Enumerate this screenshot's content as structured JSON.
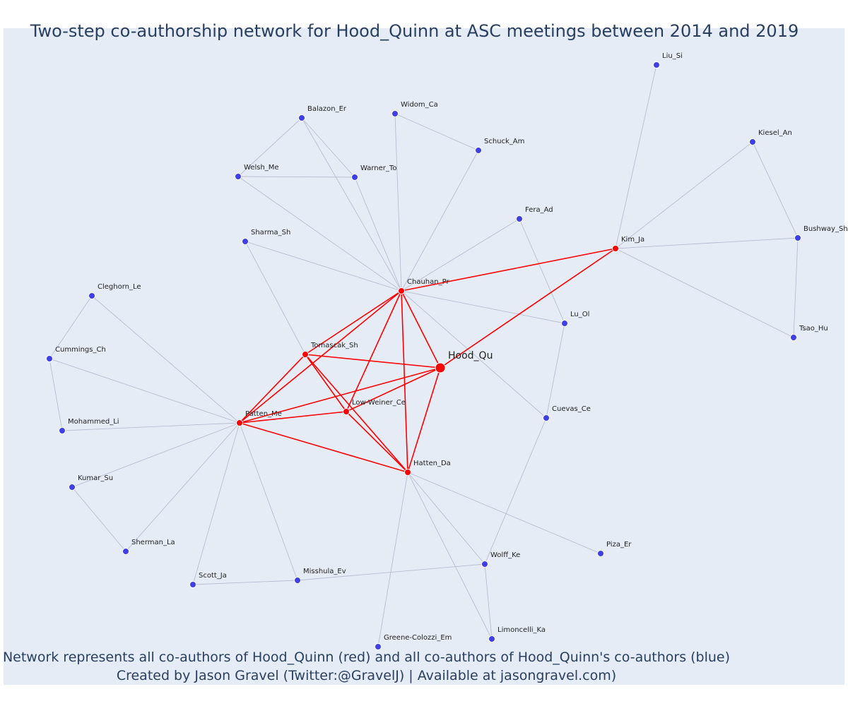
{
  "title": "Two-step co-authorship network for Hood_Quinn at ASC meetings between 2014 and 2019",
  "footer": {
    "line1": "Network represents all co-authors of Hood_Quinn (red) and all co-authors of Hood_Quinn's co-authors (blue)",
    "line2": "Created by Jason Gravel (Twitter:@GravelJ) | Available at jasongravel.com)"
  },
  "colors": {
    "coauthor": "#ff0000",
    "second_step": "#3f3fe8",
    "second_step_edge": "#b9bdd1",
    "coauthor_edge": "#ff0000",
    "background": "#e5ecf6"
  },
  "chart_data": {
    "type": "network",
    "center": "Hood_Qu",
    "nodes": [
      {
        "id": "Hood_Qu",
        "label": "Hood_Qu",
        "group": "center"
      },
      {
        "id": "Chauhan_Pr",
        "label": "Chauhan_Pr",
        "group": "coauthor"
      },
      {
        "id": "Kim_Ja",
        "label": "Kim_Ja",
        "group": "coauthor"
      },
      {
        "id": "Tomascak_Sh",
        "label": "Tomascak_Sh",
        "group": "coauthor"
      },
      {
        "id": "Low-Weiner_Ce",
        "label": "Low-Weiner_Ce",
        "group": "coauthor"
      },
      {
        "id": "Patten_Me",
        "label": "Patten_Me",
        "group": "coauthor"
      },
      {
        "id": "Hatten_Da",
        "label": "Hatten_Da",
        "group": "coauthor"
      },
      {
        "id": "Liu_Si",
        "label": "Liu_Si",
        "group": "second"
      },
      {
        "id": "Kiesel_An",
        "label": "Kiesel_An",
        "group": "second"
      },
      {
        "id": "Bushway_Sh",
        "label": "Bushway_Sh",
        "group": "second"
      },
      {
        "id": "Tsao_Hu",
        "label": "Tsao_Hu",
        "group": "second"
      },
      {
        "id": "Balazon_Er",
        "label": "Balazon_Er",
        "group": "second"
      },
      {
        "id": "Widom_Ca",
        "label": "Widom_Ca",
        "group": "second"
      },
      {
        "id": "Schuck_Am",
        "label": "Schuck_Am",
        "group": "second"
      },
      {
        "id": "Welsh_Me",
        "label": "Welsh_Me",
        "group": "second"
      },
      {
        "id": "Warner_To",
        "label": "Warner_To",
        "group": "second"
      },
      {
        "id": "Fera_Ad",
        "label": "Fera_Ad",
        "group": "second"
      },
      {
        "id": "Sharma_Sh",
        "label": "Sharma_Sh",
        "group": "second"
      },
      {
        "id": "Lu_Ol",
        "label": "Lu_Ol",
        "group": "second"
      },
      {
        "id": "Cuevas_Ce",
        "label": "Cuevas_Ce",
        "group": "second"
      },
      {
        "id": "Cleghorn_Le",
        "label": "Cleghorn_Le",
        "group": "second"
      },
      {
        "id": "Cummings_Ch",
        "label": "Cummings_Ch",
        "group": "second"
      },
      {
        "id": "Mohammed_Li",
        "label": "Mohammed_Li",
        "group": "second"
      },
      {
        "id": "Kumar_Su",
        "label": "Kumar_Su",
        "group": "second"
      },
      {
        "id": "Sherman_La",
        "label": "Sherman_La",
        "group": "second"
      },
      {
        "id": "Scott_Ja",
        "label": "Scott_Ja",
        "group": "second"
      },
      {
        "id": "Misshula_Ev",
        "label": "Misshula_Ev",
        "group": "second"
      },
      {
        "id": "Wolff_Ke",
        "label": "Wolff_Ke",
        "group": "second"
      },
      {
        "id": "Piza_Er",
        "label": "Piza_Er",
        "group": "second"
      },
      {
        "id": "Greene-Colozzi_Em",
        "label": "Greene-Colozzi_Em",
        "group": "second"
      },
      {
        "id": "Limoncelli_Ka",
        "label": "Limoncelli_Ka",
        "group": "second"
      }
    ],
    "coauthor_edges": [
      [
        "Hood_Qu",
        "Chauhan_Pr"
      ],
      [
        "Hood_Qu",
        "Kim_Ja"
      ],
      [
        "Hood_Qu",
        "Tomascak_Sh"
      ],
      [
        "Hood_Qu",
        "Low-Weiner_Ce"
      ],
      [
        "Hood_Qu",
        "Patten_Me"
      ],
      [
        "Hood_Qu",
        "Hatten_Da"
      ],
      [
        "Chauhan_Pr",
        "Kim_Ja"
      ],
      [
        "Chauhan_Pr",
        "Tomascak_Sh"
      ],
      [
        "Chauhan_Pr",
        "Patten_Me"
      ],
      [
        "Chauhan_Pr",
        "Low-Weiner_Ce"
      ],
      [
        "Chauhan_Pr",
        "Hatten_Da"
      ],
      [
        "Tomascak_Sh",
        "Patten_Me"
      ],
      [
        "Tomascak_Sh",
        "Low-Weiner_Ce"
      ],
      [
        "Tomascak_Sh",
        "Hatten_Da"
      ],
      [
        "Patten_Me",
        "Low-Weiner_Ce"
      ],
      [
        "Patten_Me",
        "Hatten_Da"
      ],
      [
        "Low-Weiner_Ce",
        "Hatten_Da"
      ]
    ],
    "second_edges": [
      [
        "Kim_Ja",
        "Liu_Si"
      ],
      [
        "Kim_Ja",
        "Kiesel_An"
      ],
      [
        "Kim_Ja",
        "Bushway_Sh"
      ],
      [
        "Kim_Ja",
        "Tsao_Hu"
      ],
      [
        "Kiesel_An",
        "Bushway_Sh"
      ],
      [
        "Bushway_Sh",
        "Tsao_Hu"
      ],
      [
        "Chauhan_Pr",
        "Balazon_Er"
      ],
      [
        "Chauhan_Pr",
        "Widom_Ca"
      ],
      [
        "Chauhan_Pr",
        "Schuck_Am"
      ],
      [
        "Chauhan_Pr",
        "Welsh_Me"
      ],
      [
        "Chauhan_Pr",
        "Warner_To"
      ],
      [
        "Chauhan_Pr",
        "Fera_Ad"
      ],
      [
        "Chauhan_Pr",
        "Sharma_Sh"
      ],
      [
        "Chauhan_Pr",
        "Lu_Ol"
      ],
      [
        "Chauhan_Pr",
        "Cuevas_Ce"
      ],
      [
        "Balazon_Er",
        "Welsh_Me"
      ],
      [
        "Balazon_Er",
        "Warner_To"
      ],
      [
        "Welsh_Me",
        "Warner_To"
      ],
      [
        "Widom_Ca",
        "Schuck_Am"
      ],
      [
        "Fera_Ad",
        "Lu_Ol"
      ],
      [
        "Lu_Ol",
        "Cuevas_Ce"
      ],
      [
        "Sharma_Sh",
        "Tomascak_Sh"
      ],
      [
        "Patten_Me",
        "Cleghorn_Le"
      ],
      [
        "Patten_Me",
        "Cummings_Ch"
      ],
      [
        "Patten_Me",
        "Mohammed_Li"
      ],
      [
        "Patten_Me",
        "Kumar_Su"
      ],
      [
        "Patten_Me",
        "Sherman_La"
      ],
      [
        "Patten_Me",
        "Scott_Ja"
      ],
      [
        "Patten_Me",
        "Misshula_Ev"
      ],
      [
        "Cleghorn_Le",
        "Cummings_Ch"
      ],
      [
        "Cummings_Ch",
        "Mohammed_Li"
      ],
      [
        "Kumar_Su",
        "Sherman_La"
      ],
      [
        "Scott_Ja",
        "Misshula_Ev"
      ],
      [
        "Misshula_Ev",
        "Wolff_Ke"
      ],
      [
        "Cuevas_Ce",
        "Wolff_Ke"
      ],
      [
        "Hatten_Da",
        "Wolff_Ke"
      ],
      [
        "Hatten_Da",
        "Piza_Er"
      ],
      [
        "Hatten_Da",
        "Greene-Colozzi_Em"
      ],
      [
        "Hatten_Da",
        "Limoncelli_Ka"
      ],
      [
        "Wolff_Ke",
        "Limoncelli_Ka"
      ]
    ]
  }
}
